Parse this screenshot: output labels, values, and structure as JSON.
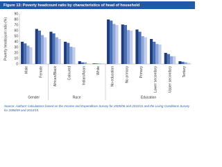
{
  "chart_data": {
    "type": "bar",
    "title": "Figure 13: Poverty headcount ratio by characteristics of head of household",
    "y_label": "Poverty headcount ratio (%)",
    "groups": [
      {
        "label": "Gender",
        "categories": [
          "Male",
          "Female"
        ]
      },
      {
        "label": "Race",
        "categories": [
          "African/Black",
          "Coloured",
          "Indian/Asian",
          "White"
        ]
      },
      {
        "label": "Education",
        "categories": [
          "No education",
          "No primary",
          "Primary",
          "Lower secondary",
          "Upper secondary",
          "Tertiary"
        ]
      }
    ],
    "series": [
      {
        "color": "#1f3d7a",
        "values": [
          40,
          63,
          58,
          40,
          5,
          1,
          80,
          71,
          62,
          45,
          20,
          5
        ]
      },
      {
        "color": "#4a6fb5",
        "values": [
          37,
          60,
          55,
          38,
          3,
          1,
          78,
          70,
          58,
          40,
          18,
          4
        ]
      },
      {
        "color": "#8ea6d8",
        "values": [
          33,
          52,
          48,
          31,
          3,
          1,
          72,
          61,
          50,
          36,
          14,
          3
        ]
      },
      {
        "color": "#c3cdec",
        "values": [
          30,
          48,
          45,
          30,
          1,
          1,
          70,
          60,
          48,
          35,
          14,
          2
        ]
      }
    ],
    "ylim": [
      0,
      90
    ],
    "yticks": [
      0,
      10,
      20,
      30,
      40,
      50,
      60,
      70,
      80,
      90
    ],
    "grid": false,
    "source": "Source: Authors' calculations based on the Income and Expenditure Survey for 2005/06 and 2010/11 and the Living Conditions Survey for 2008/09 and 2014/15."
  }
}
